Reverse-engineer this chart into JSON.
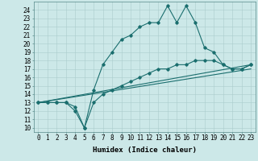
{
  "title": "",
  "xlabel": "Humidex (Indice chaleur)",
  "background_color": "#cce8e8",
  "grid_color": "#aacccc",
  "line_color": "#1a6e6e",
  "xlim": [
    -0.5,
    23.5
  ],
  "ylim": [
    9.5,
    25
  ],
  "xticks": [
    0,
    1,
    2,
    3,
    4,
    5,
    6,
    7,
    8,
    9,
    10,
    11,
    12,
    13,
    14,
    15,
    16,
    17,
    18,
    19,
    20,
    21,
    22,
    23
  ],
  "yticks": [
    10,
    11,
    12,
    13,
    14,
    15,
    16,
    17,
    18,
    19,
    20,
    21,
    22,
    23,
    24
  ],
  "line1_x": [
    0,
    1,
    2,
    3,
    4,
    5,
    6,
    7,
    8,
    9,
    10,
    11,
    12,
    13,
    14,
    15,
    16,
    17,
    18,
    19,
    20,
    21,
    22,
    23
  ],
  "line1_y": [
    13,
    13,
    13,
    13,
    12,
    10,
    14.5,
    17.5,
    19,
    20.5,
    21,
    22,
    22.5,
    22.5,
    24.5,
    22.5,
    24.5,
    22.5,
    19.5,
    19,
    17.5,
    17,
    17,
    17.5
  ],
  "line2_x": [
    0,
    1,
    2,
    3,
    4,
    5,
    6,
    7,
    8,
    9,
    10,
    11,
    12,
    13,
    14,
    15,
    16,
    17,
    18,
    19,
    20,
    21,
    22,
    23
  ],
  "line2_y": [
    13,
    13,
    13,
    13,
    12.5,
    10,
    13,
    14,
    14.5,
    15,
    15.5,
    16,
    16.5,
    17,
    17,
    17.5,
    17.5,
    18,
    18,
    18,
    17.5,
    17,
    17,
    17.5
  ],
  "line3_x": [
    0,
    23
  ],
  "line3_y": [
    13,
    17.5
  ],
  "line4_x": [
    0,
    23
  ],
  "line4_y": [
    13,
    17
  ],
  "marker": "D",
  "markersize": 1.8,
  "linewidth": 0.8,
  "font_size_label": 6.5,
  "font_size_tick": 5.5
}
